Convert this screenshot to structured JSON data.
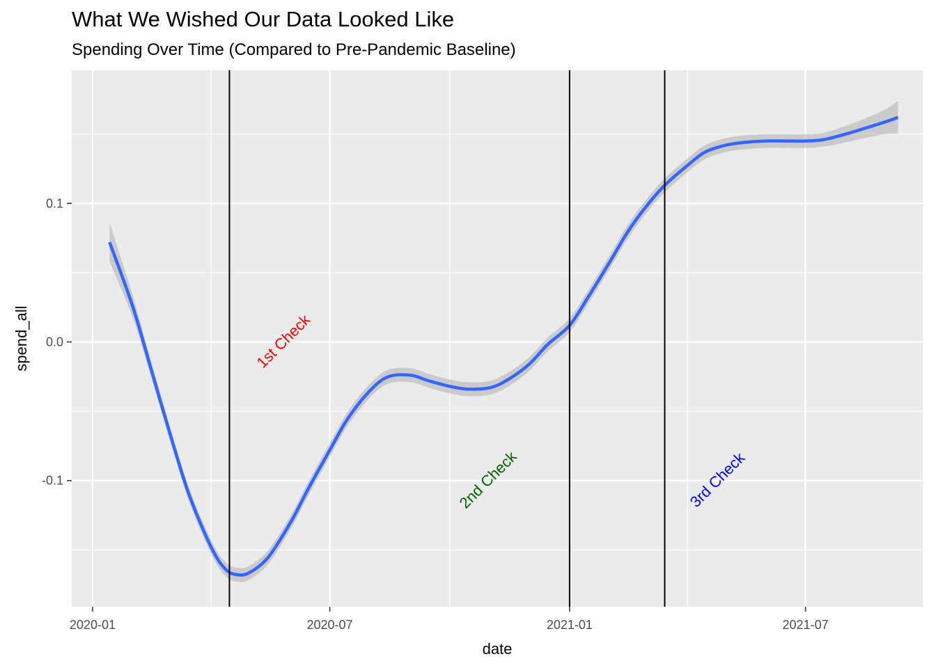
{
  "chart_data": {
    "type": "line",
    "title": "What We Wished Our Data Looked Like",
    "subtitle": "Spending Over Time (Compared to Pre-Pandemic Baseline)",
    "xlabel": "date",
    "ylabel": "spend_all",
    "x_ticks": [
      "2020-01",
      "2020-07",
      "2021-01",
      "2021-07"
    ],
    "x_tick_values": [
      "2020-01-01",
      "2020-07-01",
      "2021-01-01",
      "2021-07-01"
    ],
    "y_ticks": [
      "-0.1",
      "0.0",
      "0.1"
    ],
    "y_tick_values": [
      -0.1,
      0.0,
      0.1
    ],
    "xlim": [
      "2019-12-16",
      "2021-09-29"
    ],
    "ylim": [
      -0.191,
      0.196
    ],
    "grid": true,
    "series": [
      {
        "name": "smoothed spend_all",
        "color": "#3366FF",
        "x": [
          "2020-01-14",
          "2020-02-01",
          "2020-02-15",
          "2020-03-01",
          "2020-03-15",
          "2020-04-01",
          "2020-04-12",
          "2020-04-22",
          "2020-05-01",
          "2020-05-15",
          "2020-06-01",
          "2020-06-15",
          "2020-07-01",
          "2020-07-15",
          "2020-08-01",
          "2020-08-15",
          "2020-09-01",
          "2020-09-15",
          "2020-10-01",
          "2020-10-15",
          "2020-11-01",
          "2020-11-15",
          "2020-12-01",
          "2020-12-15",
          "2021-01-01",
          "2021-01-15",
          "2021-02-01",
          "2021-02-15",
          "2021-03-01",
          "2021-03-15",
          "2021-04-01",
          "2021-04-15",
          "2021-05-01",
          "2021-05-15",
          "2021-06-01",
          "2021-06-15",
          "2021-07-01",
          "2021-07-15",
          "2021-08-01",
          "2021-08-15",
          "2021-09-01",
          "2021-09-10"
        ],
        "values": [
          0.072,
          0.025,
          -0.02,
          -0.068,
          -0.11,
          -0.148,
          -0.164,
          -0.168,
          -0.166,
          -0.155,
          -0.13,
          -0.105,
          -0.078,
          -0.055,
          -0.035,
          -0.025,
          -0.024,
          -0.028,
          -0.032,
          -0.034,
          -0.033,
          -0.027,
          -0.016,
          -0.002,
          0.012,
          0.032,
          0.058,
          0.08,
          0.098,
          0.113,
          0.127,
          0.137,
          0.142,
          0.144,
          0.145,
          0.145,
          0.145,
          0.146,
          0.15,
          0.154,
          0.159,
          0.162
        ],
        "ci_halfwidth": [
          0.014,
          0.008,
          0.006,
          0.005,
          0.005,
          0.005,
          0.005,
          0.005,
          0.005,
          0.005,
          0.005,
          0.005,
          0.005,
          0.005,
          0.005,
          0.005,
          0.005,
          0.005,
          0.005,
          0.005,
          0.005,
          0.005,
          0.005,
          0.005,
          0.005,
          0.005,
          0.005,
          0.005,
          0.005,
          0.005,
          0.005,
          0.005,
          0.005,
          0.005,
          0.005,
          0.005,
          0.005,
          0.005,
          0.006,
          0.007,
          0.009,
          0.012
        ]
      }
    ],
    "vlines": [
      "2020-04-15",
      "2021-01-01",
      "2021-03-15"
    ],
    "annotations": [
      {
        "text": "1st Check",
        "x": "2020-05-27",
        "y": 0.0,
        "color": "#FF0000",
        "angle": 45
      },
      {
        "text": "2nd Check",
        "x": "2020-10-31",
        "y": -0.1,
        "color": "#006400",
        "angle": 45
      },
      {
        "text": "3rd Check",
        "x": "2021-04-25",
        "y": -0.1,
        "color": "#0000FF",
        "angle": 45
      }
    ]
  }
}
